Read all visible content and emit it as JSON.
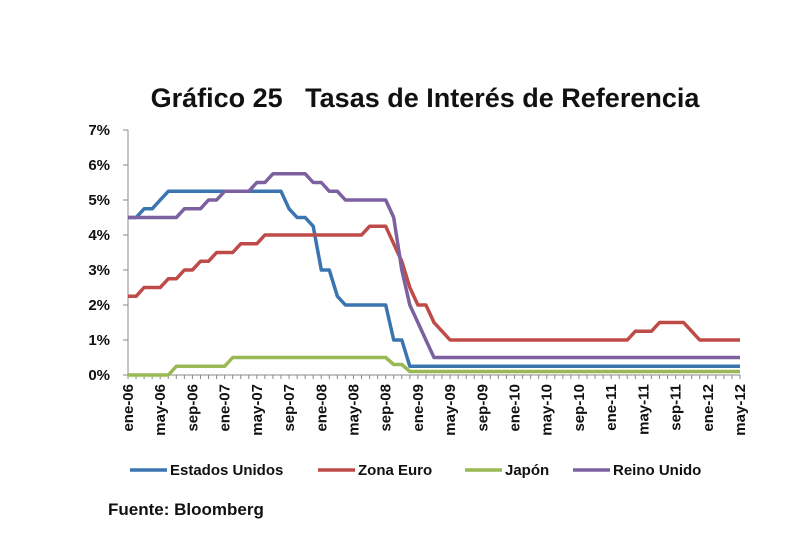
{
  "chart_data": {
    "type": "line",
    "title": "Gráfico 25   Tasas de Interés de Referencia",
    "source": "Fuente: Bloomberg",
    "xlabel": "",
    "ylabel": "",
    "ylim": [
      0,
      7
    ],
    "y_ticks": [
      "0%",
      "1%",
      "2%",
      "3%",
      "4%",
      "5%",
      "6%",
      "7%"
    ],
    "x_tick_labels": [
      "ene-06",
      "may-06",
      "sep-06",
      "ene-07",
      "may-07",
      "sep-07",
      "ene-08",
      "may-08",
      "sep-08",
      "ene-09",
      "may-09",
      "sep-09",
      "ene-10",
      "may-10",
      "sep-10",
      "ene-11",
      "may-11",
      "sep-11",
      "ene-12",
      "may-12"
    ],
    "x_start": "2006-01",
    "x_end": "2012-05",
    "grid": false,
    "legend_position": "bottom",
    "series": [
      {
        "name": "Estados Unidos",
        "color": "#3A75B0",
        "points": [
          [
            "2006-01",
            4.5
          ],
          [
            "2006-02",
            4.5
          ],
          [
            "2006-03",
            4.75
          ],
          [
            "2006-04",
            4.75
          ],
          [
            "2006-05",
            5.0
          ],
          [
            "2006-06",
            5.25
          ],
          [
            "2007-08",
            5.25
          ],
          [
            "2007-09",
            4.75
          ],
          [
            "2007-10",
            4.5
          ],
          [
            "2007-11",
            4.5
          ],
          [
            "2007-12",
            4.25
          ],
          [
            "2008-01",
            3.0
          ],
          [
            "2008-02",
            3.0
          ],
          [
            "2008-03",
            2.25
          ],
          [
            "2008-04",
            2.0
          ],
          [
            "2008-09",
            2.0
          ],
          [
            "2008-10",
            1.0
          ],
          [
            "2008-11",
            1.0
          ],
          [
            "2008-12",
            0.25
          ],
          [
            "2012-05",
            0.25
          ]
        ]
      },
      {
        "name": "Zona Euro",
        "color": "#BE4B48",
        "points": [
          [
            "2006-01",
            2.25
          ],
          [
            "2006-02",
            2.25
          ],
          [
            "2006-03",
            2.5
          ],
          [
            "2006-05",
            2.5
          ],
          [
            "2006-06",
            2.75
          ],
          [
            "2006-07",
            2.75
          ],
          [
            "2006-08",
            3.0
          ],
          [
            "2006-09",
            3.0
          ],
          [
            "2006-10",
            3.25
          ],
          [
            "2006-11",
            3.25
          ],
          [
            "2006-12",
            3.5
          ],
          [
            "2007-02",
            3.5
          ],
          [
            "2007-03",
            3.75
          ],
          [
            "2007-05",
            3.75
          ],
          [
            "2007-06",
            4.0
          ],
          [
            "2008-06",
            4.0
          ],
          [
            "2008-07",
            4.25
          ],
          [
            "2008-09",
            4.25
          ],
          [
            "2008-10",
            3.75
          ],
          [
            "2008-11",
            3.25
          ],
          [
            "2008-12",
            2.5
          ],
          [
            "2009-01",
            2.0
          ],
          [
            "2009-02",
            2.0
          ],
          [
            "2009-03",
            1.5
          ],
          [
            "2009-04",
            1.25
          ],
          [
            "2009-05",
            1.0
          ],
          [
            "2011-03",
            1.0
          ],
          [
            "2011-04",
            1.25
          ],
          [
            "2011-06",
            1.25
          ],
          [
            "2011-07",
            1.5
          ],
          [
            "2011-10",
            1.5
          ],
          [
            "2011-11",
            1.25
          ],
          [
            "2011-12",
            1.0
          ],
          [
            "2012-05",
            1.0
          ]
        ]
      },
      {
        "name": "Japón",
        "color": "#98B954",
        "points": [
          [
            "2006-01",
            0.0
          ],
          [
            "2006-06",
            0.0
          ],
          [
            "2006-07",
            0.25
          ],
          [
            "2007-01",
            0.25
          ],
          [
            "2007-02",
            0.5
          ],
          [
            "2008-09",
            0.5
          ],
          [
            "2008-10",
            0.3
          ],
          [
            "2008-11",
            0.3
          ],
          [
            "2008-12",
            0.1
          ],
          [
            "2012-05",
            0.1
          ]
        ]
      },
      {
        "name": "Reino Unido",
        "color": "#7D60A0",
        "points": [
          [
            "2006-01",
            4.5
          ],
          [
            "2006-07",
            4.5
          ],
          [
            "2006-08",
            4.75
          ],
          [
            "2006-10",
            4.75
          ],
          [
            "2006-11",
            5.0
          ],
          [
            "2006-12",
            5.0
          ],
          [
            "2007-01",
            5.25
          ],
          [
            "2007-04",
            5.25
          ],
          [
            "2007-05",
            5.5
          ],
          [
            "2007-06",
            5.5
          ],
          [
            "2007-07",
            5.75
          ],
          [
            "2007-11",
            5.75
          ],
          [
            "2007-12",
            5.5
          ],
          [
            "2008-01",
            5.5
          ],
          [
            "2008-02",
            5.25
          ],
          [
            "2008-03",
            5.25
          ],
          [
            "2008-04",
            5.0
          ],
          [
            "2008-09",
            5.0
          ],
          [
            "2008-10",
            4.5
          ],
          [
            "2008-11",
            3.0
          ],
          [
            "2008-12",
            2.0
          ],
          [
            "2009-01",
            1.5
          ],
          [
            "2009-02",
            1.0
          ],
          [
            "2009-03",
            0.5
          ],
          [
            "2012-05",
            0.5
          ]
        ]
      }
    ]
  }
}
